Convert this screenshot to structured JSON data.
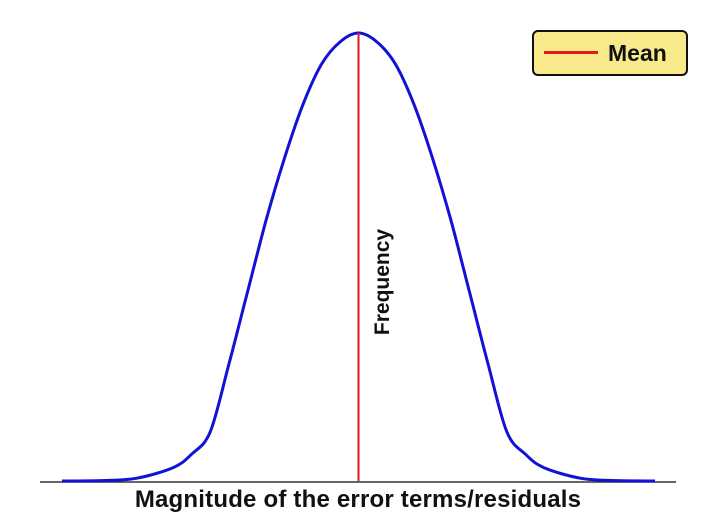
{
  "chart_data": {
    "type": "line",
    "title": "",
    "xlabel": "Magnitude of the error terms/residuals",
    "ylabel": "Frequency",
    "xlim": [
      -4,
      4
    ],
    "ylim": [
      0,
      1
    ],
    "grid": false,
    "legend": {
      "placement": "top-right",
      "entries": [
        "Mean"
      ]
    },
    "series": [
      {
        "color": "#1212d6",
        "x": [
          -4.0,
          -3.5,
          -3.0,
          -2.5,
          -2.25,
          -2.0,
          -1.75,
          -1.5,
          -1.25,
          -1.0,
          -0.75,
          -0.5,
          -0.25,
          0.0,
          0.25,
          0.5,
          0.75,
          1.0,
          1.25,
          1.5,
          1.75,
          2.0,
          2.25,
          2.5,
          3.0,
          3.5,
          4.0
        ],
        "y": [
          0.0,
          0.001,
          0.006,
          0.03,
          0.06,
          0.11,
          0.26,
          0.42,
          0.58,
          0.72,
          0.84,
          0.93,
          0.98,
          1.0,
          0.98,
          0.93,
          0.84,
          0.72,
          0.58,
          0.42,
          0.26,
          0.11,
          0.06,
          0.03,
          0.006,
          0.001,
          0.0
        ]
      }
    ],
    "mean": {
      "label": "Mean",
      "x": 0.0,
      "color": "#e31a1c"
    }
  }
}
